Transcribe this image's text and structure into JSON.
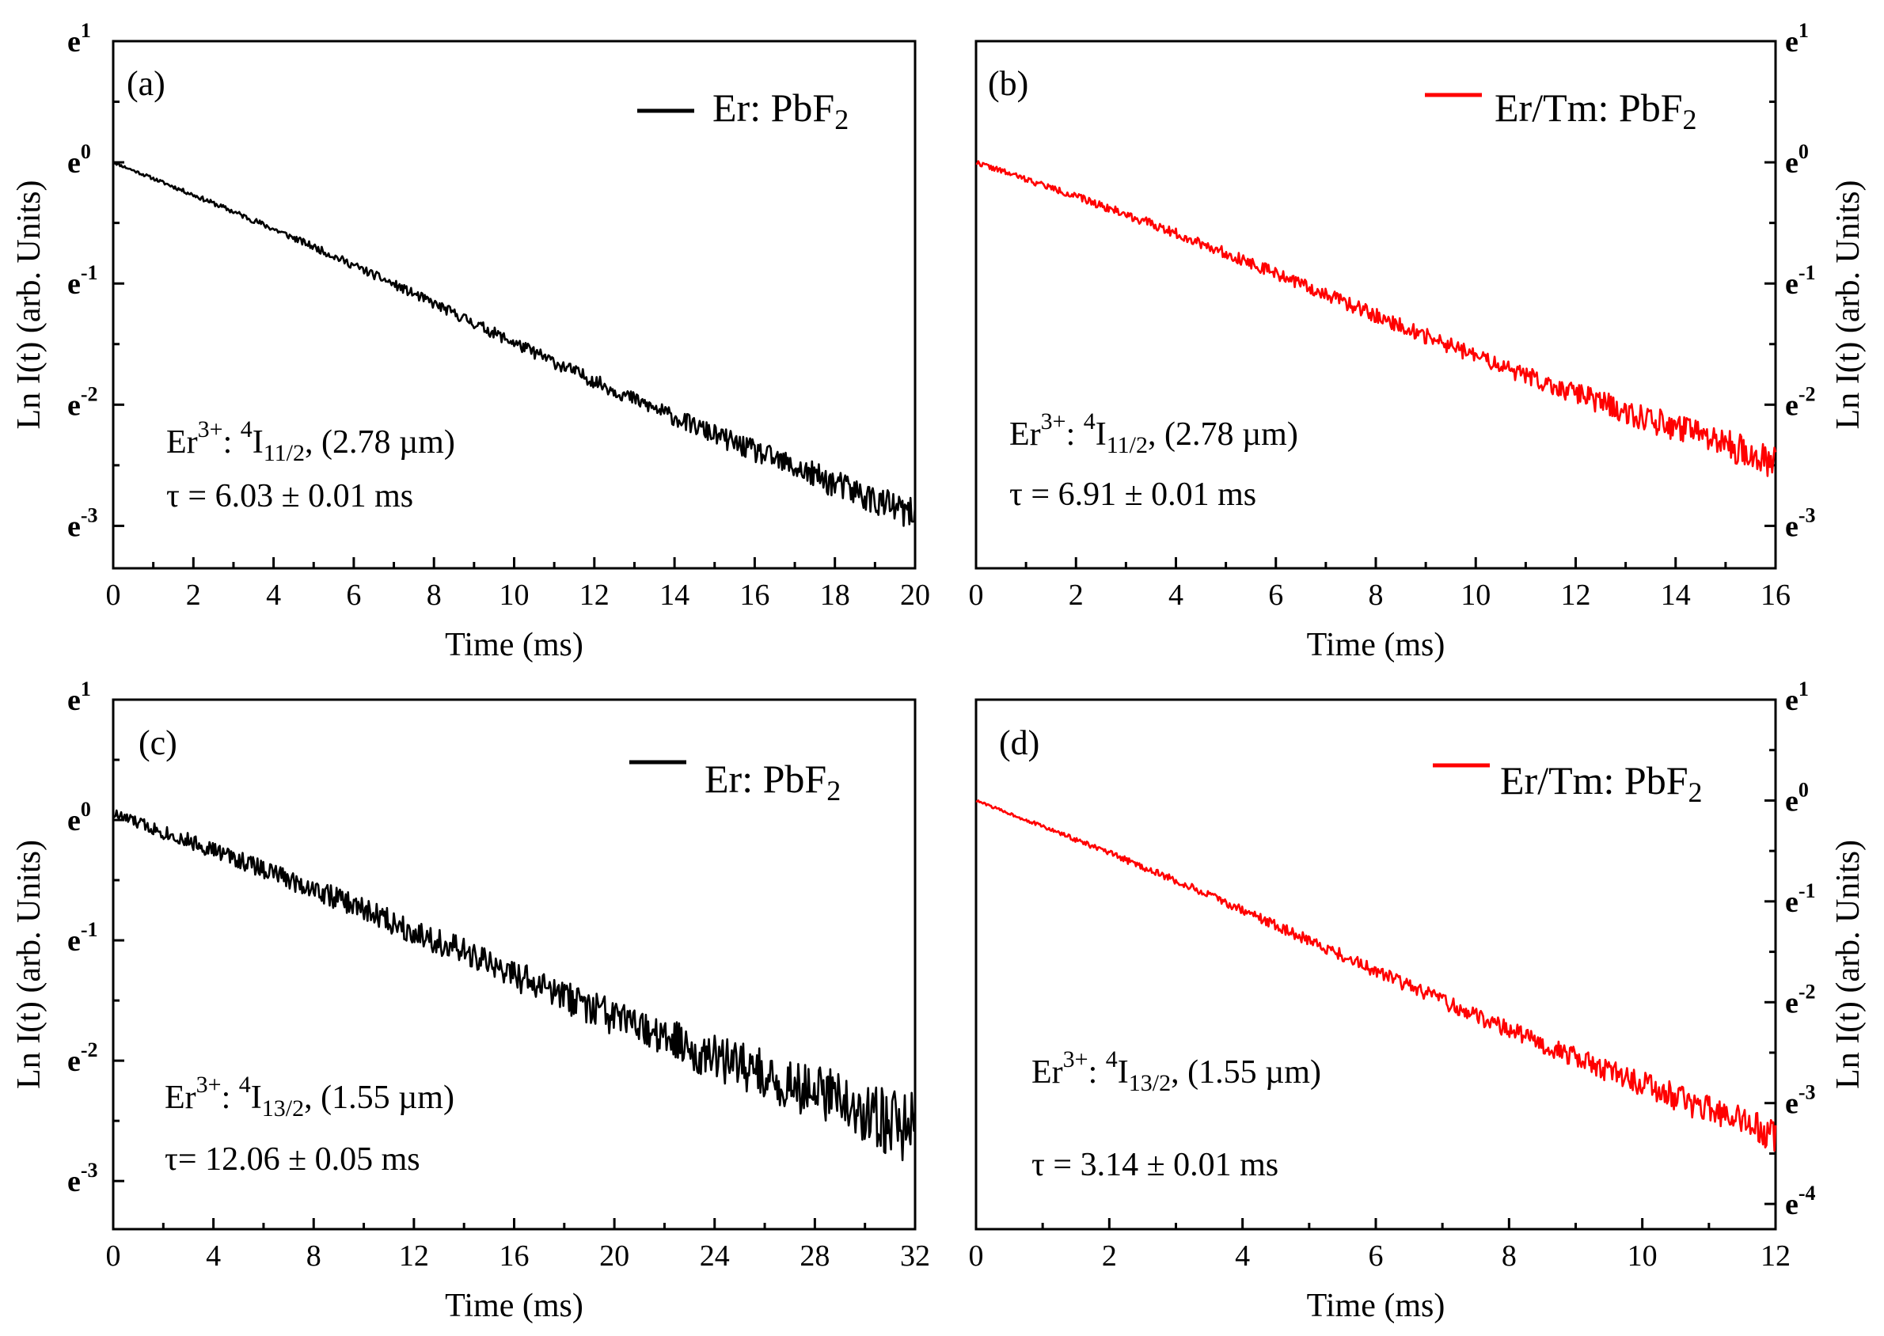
{
  "chart_data": [
    {
      "panel": "(a)",
      "type": "line",
      "series": [
        {
          "name": "Er: PbF2",
          "color": "#000000",
          "x": [
            0,
            20
          ],
          "y_ln": [
            0,
            -2.95
          ],
          "noise": [
            0.01,
            0.06,
            0.14
          ]
        }
      ],
      "legend": {
        "text": "Er: PbF",
        "sub": "2"
      },
      "xlim": [
        0,
        20
      ],
      "x_ticks": [
        0,
        2,
        4,
        6,
        8,
        10,
        12,
        14,
        16,
        18,
        20
      ],
      "ylim": [
        -3.35,
        1
      ],
      "y_ticks": [
        1,
        0,
        -1,
        -2,
        -3
      ],
      "y_tick_labels": [
        {
          "base": "e",
          "exp": "1"
        },
        {
          "base": "e",
          "exp": "0"
        },
        {
          "base": "e",
          "exp": "-1"
        },
        {
          "base": "e",
          "exp": "-2"
        },
        {
          "base": "e",
          "exp": "-3"
        }
      ],
      "xlabel": "Time (ms)",
      "ylabel": "Ln I(t) (arb. Units)",
      "yaxis_side": "left",
      "annotation": {
        "ion": "Er",
        "charge": "3+",
        "colon": ": ",
        "mult": "4",
        "level": "I",
        "level_sub": "11/2",
        "wavelength": ", (2.78 µm)",
        "tau": "τ = 6.03 ± 0.01 ms"
      }
    },
    {
      "panel": "(b)",
      "type": "line",
      "series": [
        {
          "name": "Er/Tm: PbF2",
          "color": "#ff0000",
          "x": [
            0,
            16
          ],
          "y_ln": [
            0,
            -2.5
          ],
          "noise": [
            0.02,
            0.07,
            0.14
          ]
        }
      ],
      "legend": {
        "text": "Er/Tm: PbF",
        "sub": "2"
      },
      "xlim": [
        0,
        16
      ],
      "x_ticks": [
        0,
        2,
        4,
        6,
        8,
        10,
        12,
        14,
        16
      ],
      "ylim": [
        -3.35,
        1
      ],
      "y_ticks": [
        1,
        0,
        -1,
        -2,
        -3
      ],
      "y_tick_labels": [
        {
          "base": "e",
          "exp": "1"
        },
        {
          "base": "e",
          "exp": "0"
        },
        {
          "base": "e",
          "exp": "-1"
        },
        {
          "base": "e",
          "exp": "-2"
        },
        {
          "base": "e",
          "exp": "-3"
        }
      ],
      "xlabel": "Time (ms)",
      "ylabel": "Ln I(t) (arb. Units)",
      "yaxis_side": "right",
      "annotation": {
        "ion": "Er",
        "charge": "3+",
        "colon": ": ",
        "mult": "4",
        "level": "I",
        "level_sub": "11/2",
        "wavelength": ", (2.78 µm)",
        "tau": "τ = 6.91 ± 0.01 ms"
      }
    },
    {
      "panel": "(c)",
      "type": "line",
      "series": [
        {
          "name": "Er: PbF2",
          "color": "#000000",
          "x": [
            0,
            32
          ],
          "y_ln": [
            0.05,
            -2.6
          ],
          "noise": [
            0.05,
            0.15,
            0.3
          ]
        }
      ],
      "legend": {
        "text": "Er: PbF",
        "sub": "2"
      },
      "xlim": [
        0,
        32
      ],
      "x_ticks": [
        0,
        4,
        8,
        12,
        16,
        20,
        24,
        28,
        32
      ],
      "ylim": [
        -3.4,
        1
      ],
      "y_ticks": [
        1,
        0,
        -1,
        -2,
        -3
      ],
      "y_tick_labels": [
        {
          "base": "e",
          "exp": "1"
        },
        {
          "base": "e",
          "exp": "0"
        },
        {
          "base": "e",
          "exp": "-1"
        },
        {
          "base": "e",
          "exp": "-2"
        },
        {
          "base": "e",
          "exp": "-3"
        }
      ],
      "xlabel": "Time (ms)",
      "ylabel": "Ln I(t) (arb. Units)",
      "yaxis_side": "left",
      "annotation": {
        "ion": "Er",
        "charge": "3+",
        "colon": ": ",
        "mult": "4",
        "level": "I",
        "level_sub": "13/2",
        "wavelength": ", (1.55 µm)",
        "tau": "τ= 12.06 ± 0.05 ms"
      }
    },
    {
      "panel": "(d)",
      "type": "line",
      "series": [
        {
          "name": "Er/Tm: PbF2",
          "color": "#ff0000",
          "x": [
            0,
            12
          ],
          "y_ln": [
            0,
            -3.35
          ],
          "noise": [
            0.01,
            0.08,
            0.17
          ]
        }
      ],
      "legend": {
        "text": "Er/Tm: PbF",
        "sub": "2"
      },
      "xlim": [
        0,
        12
      ],
      "x_ticks": [
        0,
        2,
        4,
        6,
        8,
        10,
        12
      ],
      "ylim": [
        -4.25,
        1
      ],
      "y_ticks": [
        1,
        0,
        -1,
        -2,
        -3,
        -4
      ],
      "y_tick_labels": [
        {
          "base": "e",
          "exp": "1"
        },
        {
          "base": "e",
          "exp": "0"
        },
        {
          "base": "e",
          "exp": "-1"
        },
        {
          "base": "e",
          "exp": "-2"
        },
        {
          "base": "e",
          "exp": "-3"
        },
        {
          "base": "e",
          "exp": "-4"
        }
      ],
      "xlabel": "Time (ms)",
      "ylabel": "Ln I(t) (arb. Units)",
      "yaxis_side": "right",
      "annotation": {
        "ion": "Er",
        "charge": "3+",
        "colon": ": ",
        "mult": "4",
        "level": "I",
        "level_sub": "13/2",
        "wavelength": ", (1.55 µm)",
        "tau": "τ = 3.14 ± 0.01 ms"
      }
    }
  ]
}
